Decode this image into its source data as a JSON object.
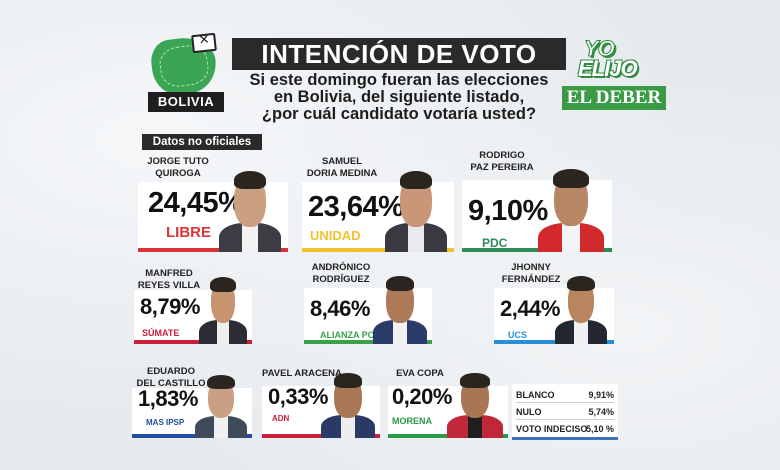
{
  "header": {
    "region_label": "BOLIVIA",
    "title": "INTENCIÓN DE VOTO",
    "question_lines": [
      "Si este domingo fueran las elecciones",
      "en Bolivia, del siguiente listado,",
      "¿por cuál candidato votaría usted?"
    ],
    "brand_yo": "YO",
    "brand_elijo": "ELIJO",
    "publisher": "EL DEBER",
    "badge": "Datos no oficiales"
  },
  "chart_data": {
    "type": "table",
    "title": "INTENCIÓN DE VOTO",
    "candidates": [
      {
        "name_lines": [
          "JORGE TUTO",
          "QUIROGA"
        ],
        "value": 24.45,
        "label": "24,45%",
        "party": "LIBRE",
        "color": "#d9343a"
      },
      {
        "name_lines": [
          "SAMUEL",
          "DORIA MEDINA"
        ],
        "value": 23.64,
        "label": "23,64%",
        "party": "UNIDAD",
        "color": "#f2c12e"
      },
      {
        "name_lines": [
          "RODRIGO",
          "PAZ PEREIRA"
        ],
        "value": 9.1,
        "label": "9,10%",
        "party": "PDC",
        "color": "#2e8b57"
      },
      {
        "name_lines": [
          "MANFRED",
          "REYES VILLA"
        ],
        "value": 8.79,
        "label": "8,79%",
        "party": "SÚMATE",
        "color": "#c8203a"
      },
      {
        "name_lines": [
          "ANDRÓNICO",
          "RODRÍGUEZ"
        ],
        "value": 8.46,
        "label": "8,46%",
        "party": "ALIANZA POPULAR",
        "color": "#3aa04a"
      },
      {
        "name_lines": [
          "JHONNY",
          "FERNÁNDEZ"
        ],
        "value": 2.44,
        "label": "2,44%",
        "party": "UCS",
        "color": "#2a8fd6"
      },
      {
        "name_lines": [
          "EDUARDO",
          "DEL CASTILLO"
        ],
        "value": 1.83,
        "label": "1,83%",
        "party": "MAS IPSP",
        "color": "#1f4e9c"
      },
      {
        "name_lines": [
          "PAVEL ARACENA"
        ],
        "value": 0.33,
        "label": "0,33%",
        "party": "ADN",
        "color": "#c8203a"
      },
      {
        "name_lines": [
          "EVA COPA"
        ],
        "value": 0.2,
        "label": "0,20%",
        "party": "MORENA",
        "color": "#2a9a48"
      }
    ],
    "other": [
      {
        "label": "BLANCO",
        "value": 9.91,
        "display": "9,91%"
      },
      {
        "label": "NULO",
        "value": 5.74,
        "display": "5,74%"
      },
      {
        "label": "VOTO INDECISO",
        "value": 5.1,
        "display": "5,10 %"
      }
    ]
  }
}
